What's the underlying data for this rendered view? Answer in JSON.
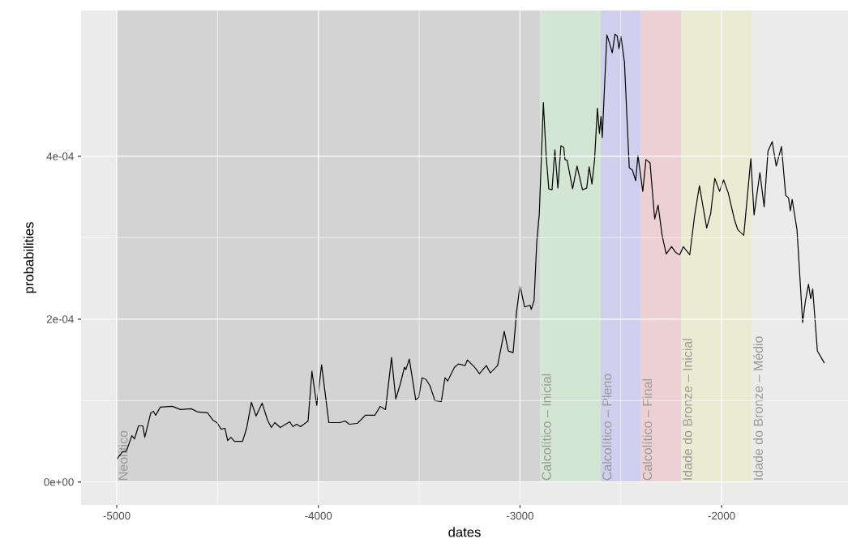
{
  "chart_data": {
    "type": "line",
    "xlabel": "dates",
    "ylabel": "probabilities",
    "xlim": [
      -5177,
      -1373
    ],
    "ylim": [
      -2.8e-05,
      0.000579
    ],
    "xticks": [
      -5000,
      -4000,
      -3000,
      -2000
    ],
    "yticks": [
      {
        "value": 0,
        "label": "0e+00"
      },
      {
        "value": 0.0002,
        "label": "2e-04"
      },
      {
        "value": 0.0004,
        "label": "4e-04"
      }
    ],
    "grid": true,
    "annotations": [
      "Idade do Bronze – Médio"
    ],
    "bands": [
      {
        "axis": "x",
        "from": -5000,
        "to": -2900,
        "label": "Neolítico",
        "color": "#d3d3d3"
      },
      {
        "axis": "x",
        "from": -2900,
        "to": -2600,
        "label": "Calcolítico – Inicial",
        "color": "#d3e5d3"
      },
      {
        "axis": "x",
        "from": -2600,
        "to": -2400,
        "label": "Calcolítico – Pleno",
        "color": "#d0d0ee"
      },
      {
        "axis": "x",
        "from": -2400,
        "to": -2200,
        "label": "Calcolítico – Final",
        "color": "#edd0d4"
      },
      {
        "axis": "x",
        "from": -2200,
        "to": -1850,
        "label": "Idade do Bronze – Inicial",
        "color": "#ebebd3"
      }
    ],
    "series": [
      {
        "color": "#000000",
        "x": [
          -5000,
          -4972,
          -4952,
          -4925,
          -4912,
          -4892,
          -4871,
          -4861,
          -4831,
          -4818,
          -4807,
          -4784,
          -4724,
          -4684,
          -4631,
          -4597,
          -4550,
          -4523,
          -4503,
          -4483,
          -4463,
          -4450,
          -4434,
          -4416,
          -4376,
          -4356,
          -4332,
          -4309,
          -4279,
          -4252,
          -4233,
          -4216,
          -4189,
          -4142,
          -4126,
          -4108,
          -4088,
          -4051,
          -4032,
          -4008,
          -3984,
          -3948,
          -3894,
          -3867,
          -3847,
          -3807,
          -3767,
          -3720,
          -3693,
          -3667,
          -3637,
          -3616,
          -3593,
          -3573,
          -3566,
          -3549,
          -3517,
          -3502,
          -3486,
          -3466,
          -3446,
          -3422,
          -3390,
          -3372,
          -3359,
          -3325,
          -3305,
          -3272,
          -3261,
          -3225,
          -3201,
          -3167,
          -3147,
          -3111,
          -3078,
          -3058,
          -3034,
          -3017,
          -3000,
          -2977,
          -2950,
          -2944,
          -2930,
          -2917,
          -2904,
          -2884,
          -2870,
          -2857,
          -2841,
          -2827,
          -2812,
          -2797,
          -2783,
          -2777,
          -2766,
          -2739,
          -2717,
          -2690,
          -2669,
          -2657,
          -2643,
          -2630,
          -2616,
          -2606,
          -2598,
          -2592,
          -2569,
          -2556,
          -2542,
          -2529,
          -2518,
          -2509,
          -2499,
          -2482,
          -2458,
          -2442,
          -2426,
          -2415,
          -2391,
          -2375,
          -2355,
          -2332,
          -2315,
          -2295,
          -2275,
          -2248,
          -2228,
          -2208,
          -2190,
          -2158,
          -2134,
          -2110,
          -2074,
          -2054,
          -2034,
          -2010,
          -1990,
          -1967,
          -1936,
          -1920,
          -1890,
          -1855,
          -1839,
          -1810,
          -1789,
          -1770,
          -1749,
          -1729,
          -1703,
          -1682,
          -1668,
          -1659,
          -1650,
          -1626,
          -1598,
          -1585,
          -1569,
          -1558,
          -1548,
          -1525,
          -1490
        ],
        "values": [
          2.8e-05,
          3.7e-05,
          3.8e-05,
          5.7e-05,
          5.3e-05,
          6.9e-05,
          6.9e-05,
          5.5e-05,
          8.5e-05,
          8.7e-05,
          8.2e-05,
          9.2e-05,
          9.3e-05,
          8.9e-05,
          9e-05,
          8.6e-05,
          8.5e-05,
          7.6e-05,
          7.3e-05,
          6.5e-05,
          6.6e-05,
          5.1e-05,
          5.5e-05,
          5e-05,
          5e-05,
          6.6e-05,
          9.8e-05,
          8.1e-05,
          9.7e-05,
          7.6e-05,
          6.7e-05,
          7.3e-05,
          6.7e-05,
          7.4e-05,
          6.8e-05,
          7.1e-05,
          6.8e-05,
          7.5e-05,
          0.000136,
          9.4e-05,
          0.000144,
          7.3e-05,
          7.3e-05,
          7.5e-05,
          7.1e-05,
          7.2e-05,
          8.2e-05,
          8.2e-05,
          9.3e-05,
          8.9e-05,
          0.000153,
          0.000102,
          0.000121,
          0.000141,
          0.000138,
          0.000151,
          0.000101,
          0.000104,
          0.000128,
          0.000126,
          0.000118,
          0.0001,
          9.9e-05,
          0.000128,
          0.000124,
          0.000141,
          0.000145,
          0.000143,
          0.00015,
          0.000141,
          0.000133,
          0.000143,
          0.000134,
          0.000143,
          0.000185,
          0.000161,
          0.000159,
          0.000209,
          0.000241,
          0.000215,
          0.000217,
          0.000212,
          0.000223,
          0.000294,
          0.00033,
          0.000466,
          0.0004,
          0.00036,
          0.000359,
          0.000408,
          0.000361,
          0.000413,
          0.000411,
          0.000396,
          0.000395,
          0.00036,
          0.000388,
          0.000359,
          0.000361,
          0.000387,
          0.000366,
          0.000396,
          0.000459,
          0.000428,
          0.000449,
          0.000423,
          0.000549,
          0.000539,
          0.000527,
          0.00055,
          0.000548,
          0.000532,
          0.000547,
          0.000516,
          0.000386,
          0.000383,
          0.00037,
          0.000401,
          0.000357,
          0.000396,
          0.000392,
          0.000323,
          0.00034,
          0.000303,
          0.00028,
          0.000289,
          0.000282,
          0.000279,
          0.000289,
          0.000279,
          0.000327,
          0.000364,
          0.000312,
          0.00033,
          0.000373,
          0.000357,
          0.000371,
          0.000355,
          0.000322,
          0.00031,
          0.000303,
          0.000397,
          0.000328,
          0.00038,
          0.000338,
          0.000406,
          0.000418,
          0.000388,
          0.000412,
          0.000352,
          0.000349,
          0.000333,
          0.000347,
          0.00031,
          0.000196,
          0.000221,
          0.000243,
          0.000225,
          0.000237,
          0.000161,
          0.000146
        ]
      }
    ]
  }
}
